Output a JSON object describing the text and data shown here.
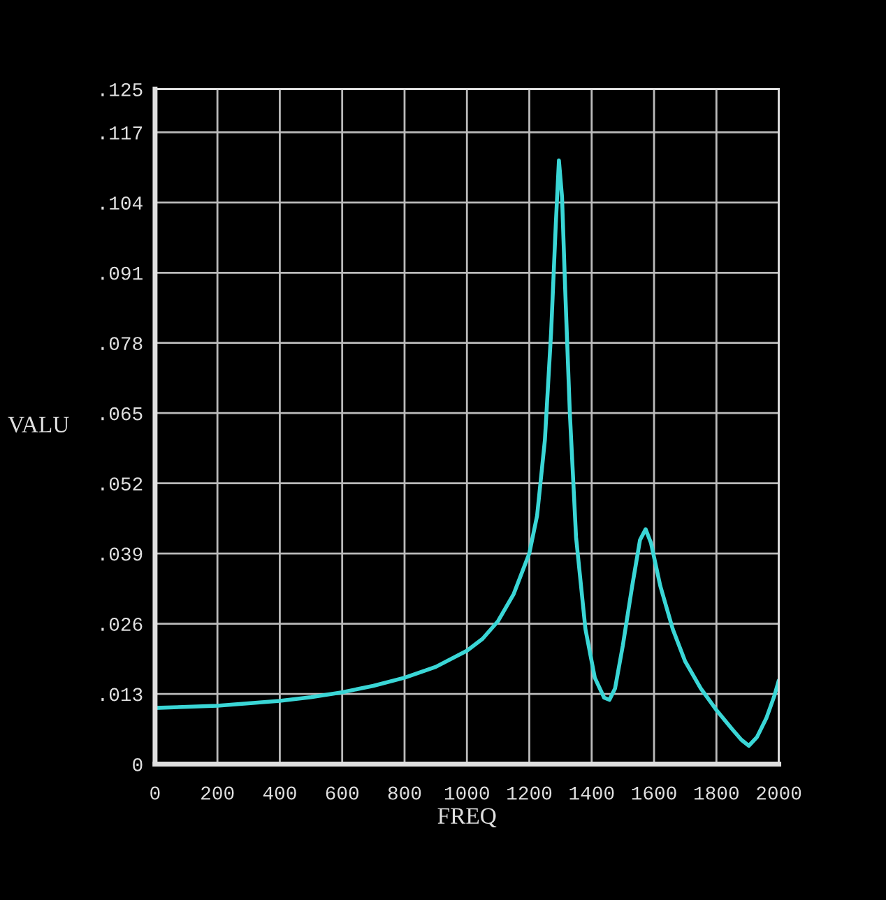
{
  "chart_data": {
    "type": "line",
    "xlabel": "FREQ",
    "ylabel": "VALU",
    "x": [
      0,
      200,
      400,
      500,
      600,
      700,
      800,
      900,
      1000,
      1050,
      1100,
      1150,
      1200,
      1225,
      1250,
      1270,
      1285,
      1295,
      1305,
      1315,
      1330,
      1350,
      1380,
      1410,
      1440,
      1457,
      1475,
      1500,
      1530,
      1555,
      1573,
      1590,
      1620,
      1660,
      1700,
      1750,
      1800,
      1850,
      1880,
      1904,
      1930,
      1960,
      1985,
      2000
    ],
    "series": [
      {
        "color": "#3ad6d6",
        "values": [
          0.0104,
          0.0108,
          0.0117,
          0.0124,
          0.0133,
          0.0145,
          0.016,
          0.018,
          0.021,
          0.0232,
          0.0265,
          0.0315,
          0.039,
          0.046,
          0.06,
          0.08,
          0.1,
          0.1118,
          0.105,
          0.088,
          0.065,
          0.042,
          0.025,
          0.016,
          0.0123,
          0.0119,
          0.014,
          0.022,
          0.033,
          0.0415,
          0.0435,
          0.041,
          0.033,
          0.025,
          0.019,
          0.014,
          0.01,
          0.0065,
          0.0045,
          0.0034,
          0.005,
          0.0085,
          0.0125,
          0.0155
        ]
      }
    ],
    "xlim": [
      0,
      2000
    ],
    "ylim": [
      0,
      0.125
    ],
    "xticks": [
      0,
      200,
      400,
      600,
      800,
      1000,
      1200,
      1400,
      1600,
      1800,
      2000
    ],
    "yticks": [
      0,
      {
        "value": 0.013,
        "label": ".013"
      },
      {
        "value": 0.026,
        "label": ".026"
      },
      {
        "value": 0.039,
        "label": ".039"
      },
      {
        "value": 0.052,
        "label": ".052"
      },
      {
        "value": 0.065,
        "label": ".065"
      },
      {
        "value": 0.078,
        "label": ".078"
      },
      {
        "value": 0.091,
        "label": ".091"
      },
      {
        "value": 0.104,
        "label": ".104"
      },
      {
        "value": 0.117,
        "label": ".117"
      },
      {
        "value": 0.125,
        "label": ".125"
      }
    ],
    "grid": true,
    "line_style": "solid",
    "marker": "none"
  }
}
